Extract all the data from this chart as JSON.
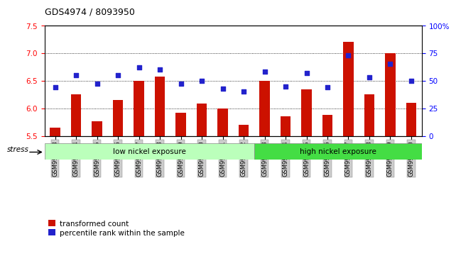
{
  "title": "GDS4974 / 8093950",
  "samples": [
    "GSM992693",
    "GSM992694",
    "GSM992695",
    "GSM992696",
    "GSM992697",
    "GSM992698",
    "GSM992699",
    "GSM992700",
    "GSM992701",
    "GSM992702",
    "GSM992703",
    "GSM992704",
    "GSM992705",
    "GSM992706",
    "GSM992707",
    "GSM992708",
    "GSM992709",
    "GSM992710"
  ],
  "red_values": [
    5.65,
    6.25,
    5.77,
    6.15,
    6.5,
    6.57,
    5.92,
    6.09,
    6.0,
    5.7,
    6.5,
    5.85,
    6.35,
    5.88,
    7.2,
    6.25,
    7.0,
    6.1
  ],
  "blue_values": [
    44,
    55,
    47,
    55,
    62,
    60,
    47,
    50,
    43,
    40,
    58,
    45,
    57,
    44,
    73,
    53,
    65,
    50
  ],
  "ylim_left": [
    5.5,
    7.5
  ],
  "ylim_right": [
    0,
    100
  ],
  "yticks_left": [
    5.5,
    6.0,
    6.5,
    7.0,
    7.5
  ],
  "yticks_right": [
    0,
    25,
    50,
    75,
    100
  ],
  "ytick_labels_right": [
    "0",
    "25",
    "50",
    "75",
    "100%"
  ],
  "gridlines": [
    6.0,
    6.5,
    7.0
  ],
  "low_nickel_count": 10,
  "group_labels": [
    "low nickel exposure",
    "high nickel exposure"
  ],
  "stress_label": "stress",
  "legend_red": "transformed count",
  "legend_blue": "percentile rank within the sample",
  "bar_color": "#CC1100",
  "blue_color": "#2222CC",
  "bg_color_low": "#BBFFBB",
  "bg_color_high": "#44DD44",
  "bar_width": 0.5,
  "label_bg": "#CCCCCC"
}
